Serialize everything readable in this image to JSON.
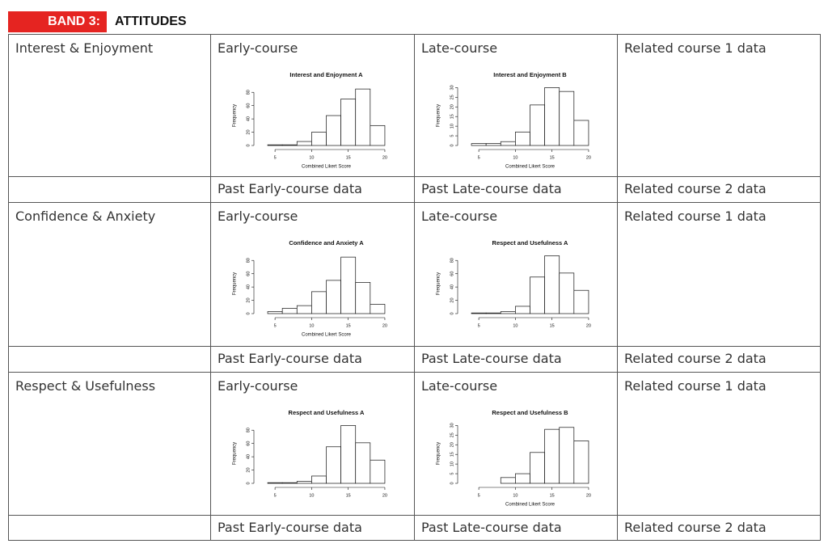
{
  "header": {
    "band": "BAND 3:",
    "title": "ATTITUDES"
  },
  "sections": [
    {
      "label": "Interest & Enjoyment",
      "main": [
        "Early-course",
        "Late-course",
        "Related course 1 data"
      ],
      "past": [
        "Past Early-course data",
        "Past Late-course data",
        "Related course 2 data"
      ]
    },
    {
      "label": "Confidence & Anxiety",
      "main": [
        "Early-course",
        "Late-course",
        "Related course 1 data"
      ],
      "past": [
        "Past Early-course data",
        "Past Late-course data",
        "Related course 2 data"
      ]
    },
    {
      "label": "Respect & Usefulness",
      "main": [
        "Early-course",
        "Late-course",
        "Related course 1 data"
      ],
      "past": [
        "Past Early-course data",
        "Past Late-course data",
        "Related course 2 data"
      ]
    }
  ],
  "chart_data": [
    {
      "type": "histogram",
      "title": "Interest and Enjoyment A",
      "y_label": "Frequency",
      "x_label": "Combined Likert Score",
      "bins": [
        4,
        6,
        8,
        10,
        12,
        14,
        16,
        18,
        20
      ],
      "counts": [
        1,
        1,
        6,
        20,
        45,
        70,
        85,
        30
      ],
      "xlim": [
        3,
        21
      ],
      "xticks": [
        5,
        10,
        15,
        20
      ],
      "ylim": [
        0,
        90
      ],
      "yticks": [
        0,
        20,
        40,
        60,
        80
      ]
    },
    {
      "type": "histogram",
      "title": "Interest and Enjoyment B",
      "y_label": "Frequency",
      "x_label": "Combined Likert Score",
      "bins": [
        4,
        6,
        8,
        10,
        12,
        14,
        16,
        18,
        20
      ],
      "counts": [
        1,
        1,
        2,
        7,
        21,
        30,
        28,
        13
      ],
      "xlim": [
        3,
        21
      ],
      "xticks": [
        5,
        10,
        15,
        20
      ],
      "ylim": [
        0,
        31
      ],
      "yticks": [
        0,
        5,
        10,
        15,
        20,
        25,
        30
      ]
    },
    {
      "type": "histogram",
      "title": "Confidence and Anxiety A",
      "y_label": "Frequency",
      "x_label": "Combined Likert Score",
      "bins": [
        4,
        6,
        8,
        10,
        12,
        14,
        16,
        18,
        20
      ],
      "counts": [
        3,
        8,
        12,
        33,
        50,
        85,
        47,
        14
      ],
      "xlim": [
        3,
        21
      ],
      "xticks": [
        5,
        10,
        15,
        20
      ],
      "ylim": [
        0,
        90
      ],
      "yticks": [
        0,
        20,
        40,
        60,
        80
      ]
    },
    {
      "type": "histogram",
      "title": "Respect and Usefulness A",
      "y_label": "Frequency",
      "bins": [
        4,
        6,
        8,
        10,
        12,
        14,
        16,
        18,
        20
      ],
      "counts": [
        1,
        1,
        3,
        11,
        55,
        87,
        61,
        35
      ],
      "xlim": [
        3,
        21
      ],
      "xticks": [
        5,
        10,
        15,
        20
      ],
      "ylim": [
        0,
        90
      ],
      "yticks": [
        0,
        20,
        40,
        60,
        80
      ]
    },
    {
      "type": "histogram",
      "title": "Respect and Usefulness A",
      "y_label": "Frequency",
      "bins": [
        4,
        6,
        8,
        10,
        12,
        14,
        16,
        18,
        20
      ],
      "counts": [
        1,
        1,
        3,
        11,
        55,
        87,
        61,
        35
      ],
      "xlim": [
        3,
        21
      ],
      "xticks": [
        5,
        10,
        15,
        20
      ],
      "ylim": [
        0,
        90
      ],
      "yticks": [
        0,
        20,
        40,
        60,
        80
      ]
    },
    {
      "type": "histogram",
      "title": "Respect and Usefulness B",
      "y_label": "Frequency",
      "x_label": "Combined Likert Score",
      "bins": [
        4,
        6,
        8,
        10,
        12,
        14,
        16,
        18,
        20
      ],
      "counts": [
        0,
        0,
        3,
        5,
        16,
        28,
        29,
        22
      ],
      "xlim": [
        3,
        21
      ],
      "xticks": [
        5,
        10,
        15,
        20
      ],
      "ylim": [
        0,
        31
      ],
      "yticks": [
        0,
        5,
        10,
        15,
        20,
        25,
        30
      ]
    }
  ]
}
